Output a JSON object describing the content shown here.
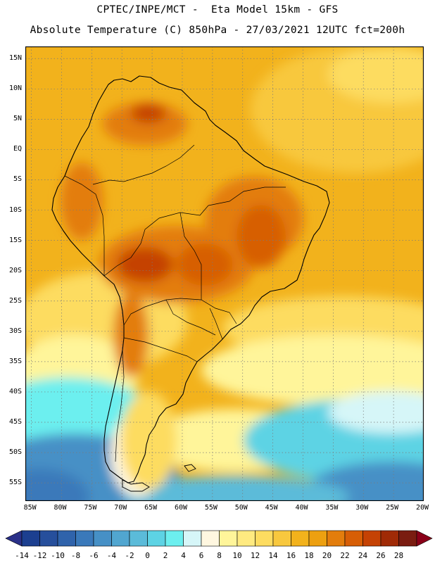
{
  "header": {
    "line1": "CPTEC/INPE/MCT -  Eta Model 15km - GFS",
    "line2": "Absolute Temperature (C) 850hPa - 27/03/2021 12UTC fct=200h"
  },
  "map": {
    "region": "South America",
    "variable": "Absolute Temperature",
    "units": "C",
    "level": "850hPa",
    "lat_range": [
      -58,
      17
    ],
    "lon_range": [
      -86,
      -20
    ]
  },
  "lat_ticks": [
    {
      "value": 15,
      "label": "15N"
    },
    {
      "value": 10,
      "label": "10N"
    },
    {
      "value": 5,
      "label": "5N"
    },
    {
      "value": 0,
      "label": "EQ"
    },
    {
      "value": -5,
      "label": "5S"
    },
    {
      "value": -10,
      "label": "10S"
    },
    {
      "value": -15,
      "label": "15S"
    },
    {
      "value": -20,
      "label": "20S"
    },
    {
      "value": -25,
      "label": "25S"
    },
    {
      "value": -30,
      "label": "30S"
    },
    {
      "value": -35,
      "label": "35S"
    },
    {
      "value": -40,
      "label": "40S"
    },
    {
      "value": -45,
      "label": "45S"
    },
    {
      "value": -50,
      "label": "50S"
    },
    {
      "value": -55,
      "label": "55S"
    }
  ],
  "lon_ticks": [
    {
      "value": -85,
      "label": "85W"
    },
    {
      "value": -80,
      "label": "80W"
    },
    {
      "value": -75,
      "label": "75W"
    },
    {
      "value": -70,
      "label": "70W"
    },
    {
      "value": -65,
      "label": "65W"
    },
    {
      "value": -60,
      "label": "60W"
    },
    {
      "value": -55,
      "label": "55W"
    },
    {
      "value": -50,
      "label": "50W"
    },
    {
      "value": -45,
      "label": "45W"
    },
    {
      "value": -40,
      "label": "40W"
    },
    {
      "value": -35,
      "label": "35W"
    },
    {
      "value": -30,
      "label": "30W"
    },
    {
      "value": -25,
      "label": "25W"
    },
    {
      "value": -20,
      "label": "20W"
    }
  ],
  "colorbar": {
    "labels": [
      "-14",
      "-12",
      "-10",
      "-8",
      "-6",
      "-4",
      "-2",
      "0",
      "2",
      "4",
      "6",
      "8",
      "10",
      "12",
      "14",
      "16",
      "18",
      "20",
      "22",
      "24",
      "26",
      "28"
    ],
    "colors": [
      "#1c3f90",
      "#264f9c",
      "#2f63ab",
      "#3a79ba",
      "#4690c6",
      "#51a6d0",
      "#5bbbd9",
      "#5dd3e4",
      "#6cefef",
      "#d6f6f8",
      "#fff7e0",
      "#fff59a",
      "#ffea80",
      "#fddc60",
      "#f8c83e",
      "#f2b21c",
      "#eda010",
      "#e37d0c",
      "#d75e06",
      "#c54204",
      "#a02a06",
      "#7a1c10"
    ],
    "under_color": "#2a3088",
    "over_color": "#8a0018"
  }
}
